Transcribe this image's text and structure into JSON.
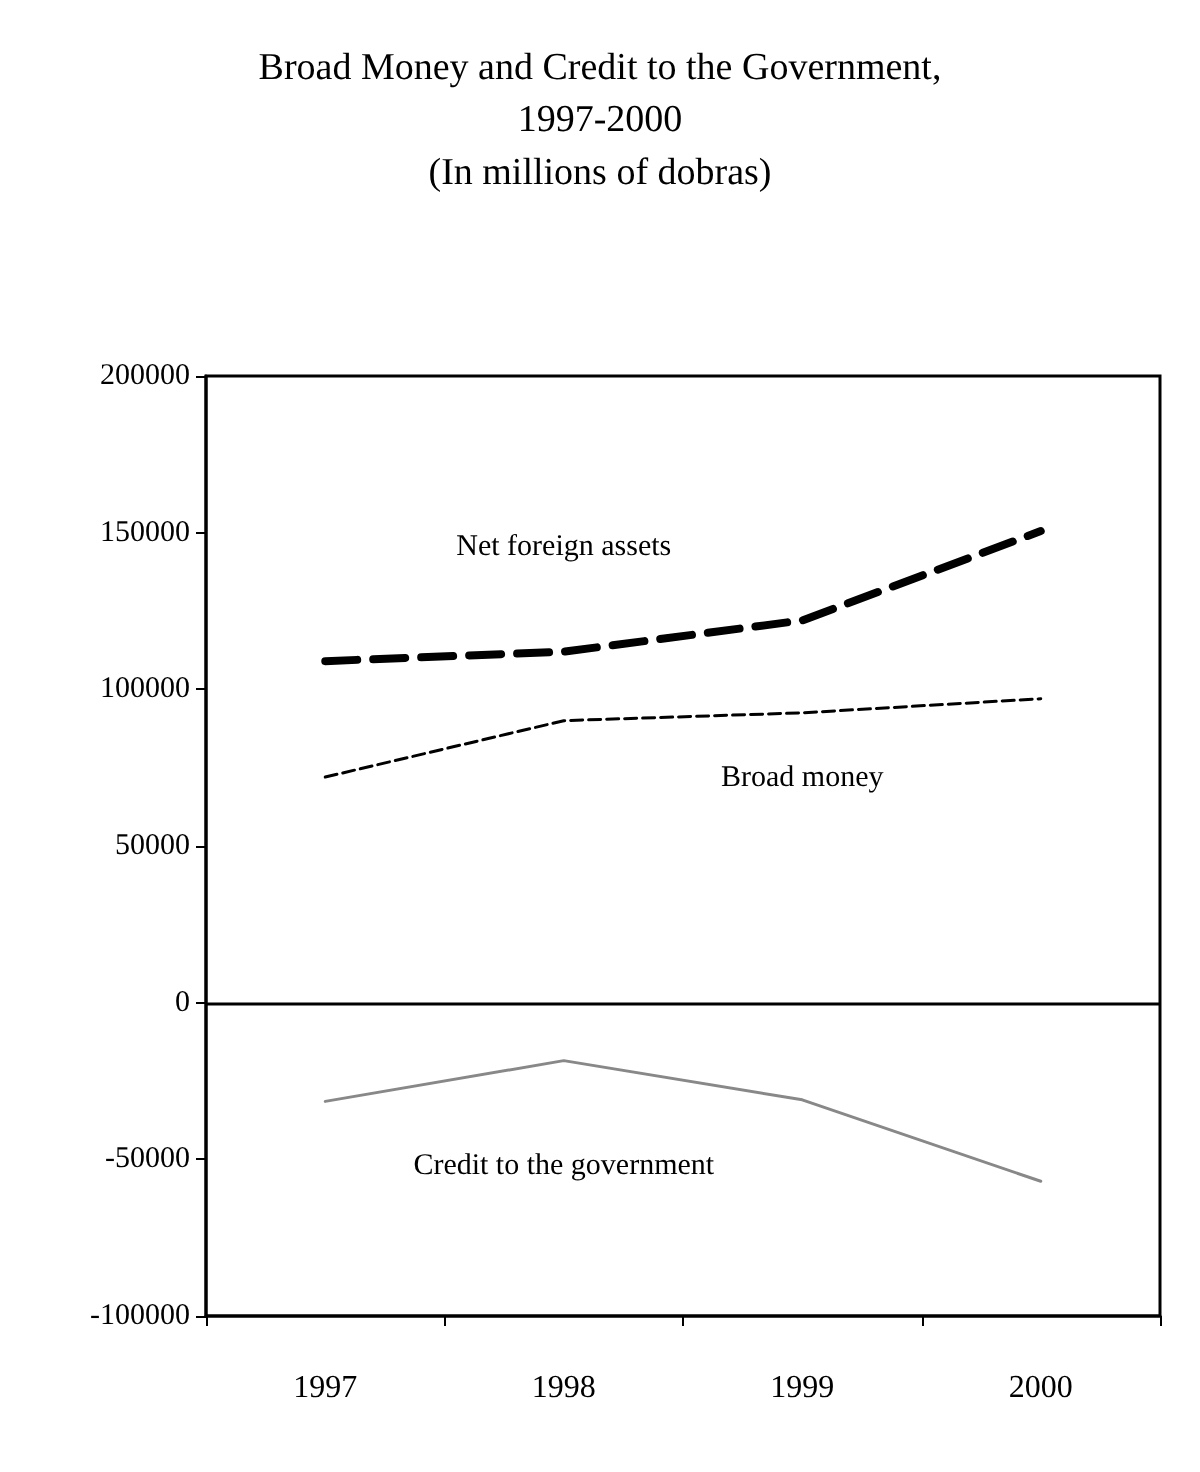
{
  "chart_data": {
    "type": "line",
    "title": "Broad Money and Credit to the Government,\n1997-2000",
    "subtitle": "(In millions of dobras)",
    "categories": [
      "1997",
      "1998",
      "1999",
      "2000"
    ],
    "series": [
      {
        "name": "Net foreign assets",
        "color": "#000000",
        "line_style": "dashed",
        "values": [
          109000,
          112000,
          122000,
          150500
        ]
      },
      {
        "name": "Broad money",
        "color": "#000000",
        "line_style": "dashed",
        "values": [
          72000,
          90000,
          92500,
          97000
        ]
      },
      {
        "name": "Credit to the government",
        "color": "#888888",
        "line_style": "solid",
        "values": [
          -31500,
          -18500,
          -31000,
          -57000
        ]
      }
    ],
    "ylim": [
      -100000,
      200000
    ],
    "yticks": [
      -100000,
      -50000,
      0,
      50000,
      100000,
      150000,
      200000
    ],
    "ref_lines": [
      {
        "axis": "y",
        "value": 0,
        "color": "#000000",
        "line_style": "solid"
      }
    ],
    "grid": false,
    "legend": false,
    "marker": "none"
  }
}
